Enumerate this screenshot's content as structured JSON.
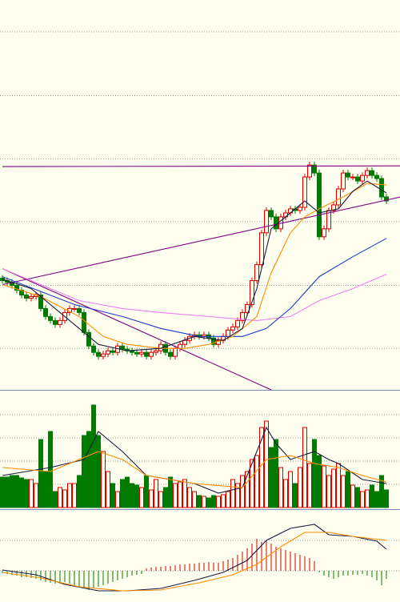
{
  "chart_data": [
    {
      "type": "candlestick",
      "up_color": "#d00000",
      "down_color": "#007a00",
      "ylim": [
        0,
        487
      ],
      "yticks": [
        52,
        131,
        211,
        290,
        369,
        449
      ],
      "grid": true,
      "open": [
        140,
        137,
        135,
        131,
        125,
        119,
        115,
        117,
        119,
        102,
        92,
        87,
        82,
        87,
        97,
        102,
        102,
        97,
        72,
        55,
        47,
        42,
        45,
        49,
        47,
        55,
        51,
        49,
        47,
        45,
        47,
        42,
        47,
        49,
        57,
        47,
        42,
        52,
        57,
        62,
        67,
        69,
        67,
        69,
        65,
        57,
        62,
        67,
        75,
        79,
        87,
        97,
        107,
        137,
        157,
        197,
        225,
        217,
        202,
        217,
        222,
        227,
        225,
        229,
        267,
        282,
        272,
        192,
        202,
        225,
        232,
        252,
        272,
        267,
        267,
        262,
        269,
        275,
        269,
        265,
        242
      ],
      "high": [
        144,
        141,
        139,
        135,
        129,
        123,
        121,
        123,
        123,
        106,
        96,
        91,
        91,
        101,
        106,
        106,
        106,
        101,
        76,
        59,
        51,
        49,
        53,
        53,
        59,
        59,
        55,
        53,
        51,
        51,
        51,
        51,
        53,
        61,
        61,
        51,
        56,
        61,
        66,
        71,
        73,
        73,
        73,
        73,
        69,
        66,
        71,
        79,
        83,
        91,
        101,
        111,
        141,
        161,
        201,
        229,
        229,
        221,
        221,
        226,
        231,
        231,
        233,
        271,
        286,
        286,
        276,
        206,
        229,
        236,
        256,
        276,
        276,
        271,
        271,
        273,
        279,
        279,
        273,
        269,
        246
      ],
      "low": [
        133,
        131,
        127,
        121,
        115,
        111,
        111,
        113,
        98,
        88,
        83,
        78,
        78,
        83,
        93,
        98,
        93,
        68,
        51,
        43,
        38,
        38,
        41,
        43,
        43,
        47,
        45,
        43,
        41,
        41,
        38,
        38,
        43,
        45,
        43,
        38,
        38,
        48,
        53,
        58,
        63,
        63,
        63,
        61,
        53,
        53,
        58,
        63,
        71,
        75,
        83,
        93,
        103,
        133,
        153,
        193,
        213,
        198,
        198,
        213,
        218,
        221,
        221,
        225,
        263,
        268,
        188,
        188,
        198,
        221,
        228,
        248,
        263,
        263,
        258,
        258,
        265,
        265,
        261,
        238,
        233
      ],
      "close": [
        137,
        135,
        131,
        125,
        119,
        115,
        117,
        119,
        102,
        92,
        87,
        82,
        87,
        97,
        102,
        102,
        97,
        72,
        55,
        47,
        42,
        45,
        49,
        47,
        55,
        51,
        49,
        47,
        45,
        47,
        42,
        47,
        49,
        57,
        47,
        42,
        52,
        57,
        62,
        67,
        69,
        67,
        69,
        65,
        57,
        62,
        67,
        75,
        79,
        87,
        97,
        107,
        137,
        157,
        197,
        225,
        217,
        202,
        217,
        222,
        227,
        225,
        229,
        267,
        282,
        272,
        192,
        202,
        225,
        232,
        252,
        272,
        267,
        267,
        262,
        269,
        275,
        269,
        265,
        242,
        237
      ],
      "lines": [
        {
          "color": "#800080",
          "x": [
            0,
            83
          ],
          "values": [
            280,
            281
          ]
        },
        {
          "color": "#800080",
          "x": [
            0,
            83
          ],
          "values": [
            132,
            242
          ]
        },
        {
          "color": "#800080",
          "x": [
            0,
            56
          ],
          "values": [
            152,
            0
          ]
        },
        {
          "color": "#ee82ee",
          "x": [
            0,
            8,
            16,
            25,
            33,
            43,
            53,
            60,
            66,
            73,
            80
          ],
          "values": [
            152,
            132,
            112,
            102,
            97,
            92,
            87,
            92,
            112,
            127,
            145
          ]
        },
        {
          "color": "#1e3cc8",
          "x": [
            0,
            15,
            25,
            33,
            41,
            50,
            55,
            60,
            66,
            73,
            80
          ],
          "values": [
            142,
            107,
            92,
            77,
            67,
            67,
            77,
            102,
            142,
            167,
            190
          ]
        },
        {
          "color": "#ff8c00",
          "x": [
            0,
            8,
            16,
            21,
            26,
            33,
            38,
            43,
            48,
            53,
            56,
            60,
            63,
            66,
            71,
            76,
            80
          ],
          "values": [
            132,
            117,
            92,
            67,
            57,
            52,
            52,
            57,
            67,
            92,
            147,
            197,
            217,
            227,
            242,
            259,
            257
          ]
        },
        {
          "color": "#1a1a40",
          "x": [
            0,
            6,
            13,
            20,
            26,
            33,
            40,
            46,
            50,
            53,
            56,
            60,
            63,
            66,
            70,
            73,
            76,
            80
          ],
          "values": [
            139,
            127,
            92,
            57,
            49,
            52,
            67,
            62,
            77,
            127,
            202,
            222,
            237,
            222,
            227,
            249,
            262,
            247
          ]
        }
      ]
    },
    {
      "type": "volume",
      "ylim": [
        0,
        146
      ],
      "yticks": [
        29,
        58,
        87,
        116
      ],
      "grid": true,
      "values": [
        38,
        38,
        40,
        40,
        37,
        35,
        35,
        30,
        85,
        45,
        95,
        20,
        25,
        22,
        30,
        30,
        40,
        90,
        95,
        128,
        90,
        70,
        45,
        30,
        20,
        35,
        38,
        30,
        28,
        25,
        40,
        22,
        35,
        20,
        25,
        38,
        30,
        32,
        35,
        25,
        20,
        15,
        14,
        12,
        15,
        14,
        16,
        20,
        35,
        30,
        40,
        45,
        60,
        65,
        100,
        108,
        75,
        85,
        50,
        35,
        45,
        30,
        50,
        100,
        55,
        85,
        65,
        52,
        40,
        48,
        55,
        40,
        45,
        28,
        25,
        20,
        22,
        28,
        20,
        40,
        22
      ],
      "lines": [
        {
          "color": "#1a1a40",
          "x": [
            0,
            10,
            17,
            20,
            25,
            30,
            35,
            40,
            45,
            50,
            55,
            57,
            60,
            65,
            68,
            70,
            75,
            80
          ],
          "values": [
            40,
            50,
            60,
            95,
            70,
            40,
            35,
            30,
            18,
            25,
            100,
            80,
            60,
            70,
            60,
            55,
            35,
            30
          ]
        },
        {
          "color": "#ff8c00",
          "x": [
            0,
            10,
            20,
            25,
            30,
            40,
            50,
            55,
            60,
            65,
            70,
            75,
            80
          ],
          "values": [
            50,
            45,
            70,
            60,
            40,
            30,
            25,
            60,
            65,
            55,
            50,
            40,
            32
          ]
        }
      ]
    },
    {
      "type": "macd",
      "ylim": [
        -39,
        73
      ],
      "yticks": [
        0,
        38
      ],
      "grid": true,
      "values": [
        -3,
        -4,
        -5,
        -6,
        -8,
        -8,
        -9,
        -10,
        -12,
        -14,
        -15,
        -16,
        -15,
        -14,
        -16,
        -18,
        -20,
        -22,
        -24,
        -22,
        -20,
        -18,
        -16,
        -14,
        -12,
        -10,
        -8,
        -6,
        -5,
        -4,
        3,
        4,
        5,
        5,
        6,
        6,
        7,
        8,
        8,
        9,
        9,
        10,
        10,
        11,
        10,
        10,
        12,
        14,
        16,
        20,
        24,
        28,
        34,
        40,
        36,
        38,
        34,
        30,
        28,
        26,
        24,
        22,
        20,
        18,
        16,
        12,
        -2,
        -6,
        -8,
        -10,
        -8,
        -6,
        -6,
        -5,
        -5,
        -4,
        -6,
        -8,
        -12,
        -18,
        -10
      ],
      "lines": [
        {
          "color": "#1a1a40",
          "x": [
            0,
            7,
            13,
            20,
            26,
            33,
            40,
            46,
            51,
            55,
            60,
            65,
            68,
            73,
            78,
            80
          ],
          "values": [
            1,
            -5,
            -17,
            -25,
            -25,
            -22,
            -12,
            -2,
            13,
            38,
            53,
            58,
            45,
            43,
            37,
            27
          ]
        },
        {
          "color": "#ff8c00",
          "x": [
            0,
            8,
            16,
            25,
            33,
            41,
            48,
            53,
            58,
            63,
            68,
            73,
            80
          ],
          "values": [
            -2,
            -9,
            -20,
            -25,
            -24,
            -15,
            -5,
            8,
            30,
            48,
            48,
            43,
            38
          ]
        }
      ]
    }
  ]
}
